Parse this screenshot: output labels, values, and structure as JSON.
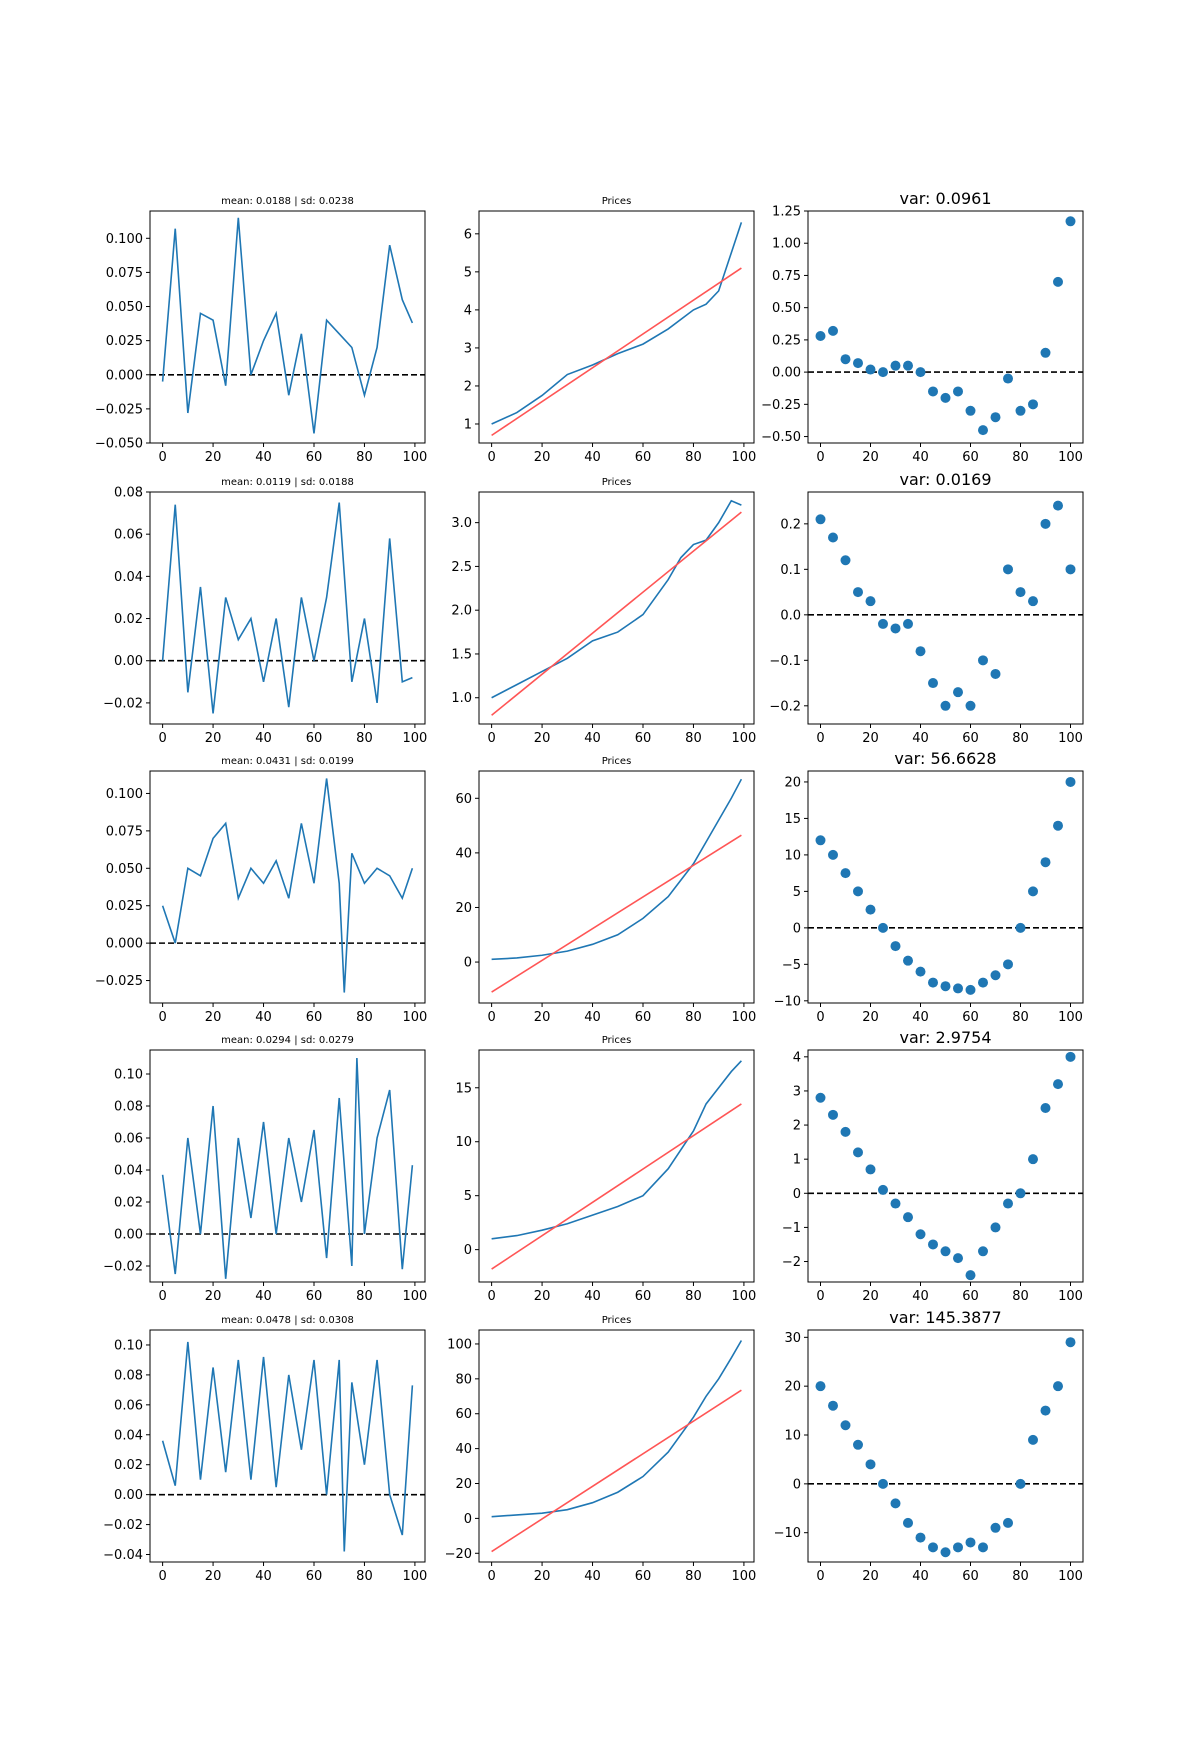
{
  "colors": {
    "line": "#1f77b4",
    "fit": "#ff5555",
    "zero": "#000000"
  },
  "chart_data": [
    {
      "type": "line",
      "title": "mean: 0.0188 | sd: 0.0238",
      "xlim": [
        -5,
        104
      ],
      "ylim": [
        -0.05,
        0.12
      ],
      "xticks": [
        0,
        20,
        40,
        60,
        80,
        100
      ],
      "yticks": [
        -0.05,
        -0.025,
        0,
        0.025,
        0.05,
        0.075,
        0.1
      ],
      "ytick_labels": [
        "−0.050",
        "−0.025",
        "0.000",
        "0.025",
        "0.050",
        "0.075",
        "0.100"
      ],
      "zero_line": true,
      "series": [
        {
          "x": [
            0,
            5,
            10,
            15,
            20,
            25,
            30,
            35,
            40,
            45,
            50,
            55,
            60,
            65,
            70,
            75,
            80,
            85,
            90,
            95,
            99
          ],
          "values": [
            -0.005,
            0.107,
            -0.028,
            0.045,
            0.04,
            -0.008,
            0.115,
            0.0,
            0.025,
            0.045,
            -0.015,
            0.03,
            -0.043,
            0.04,
            0.03,
            0.02,
            -0.015,
            0.02,
            0.095,
            0.055,
            0.038
          ]
        }
      ]
    },
    {
      "type": "line",
      "title": "Prices",
      "xlim": [
        -5,
        104
      ],
      "ylim": [
        0.5,
        6.6
      ],
      "xticks": [
        0,
        20,
        40,
        60,
        80,
        100
      ],
      "yticks": [
        1,
        2,
        3,
        4,
        5,
        6
      ],
      "ytick_labels": [
        "1",
        "2",
        "3",
        "4",
        "5",
        "6"
      ],
      "series": [
        {
          "x": [
            0,
            10,
            20,
            30,
            40,
            50,
            60,
            70,
            80,
            85,
            90,
            95,
            99
          ],
          "values": [
            1.0,
            1.3,
            1.75,
            2.3,
            2.55,
            2.85,
            3.1,
            3.5,
            4.0,
            4.15,
            4.5,
            5.5,
            6.3
          ]
        },
        {
          "x": [
            0,
            99
          ],
          "values": [
            0.7,
            5.1
          ],
          "color": "fit"
        }
      ]
    },
    {
      "type": "scatter",
      "title": "var: 0.0961",
      "xlim": [
        -5,
        105
      ],
      "ylim": [
        -0.55,
        1.25
      ],
      "xticks": [
        0,
        20,
        40,
        60,
        80,
        100
      ],
      "yticks": [
        -0.5,
        -0.25,
        0,
        0.25,
        0.5,
        0.75,
        1.0,
        1.25
      ],
      "ytick_labels": [
        "−0.50",
        "−0.25",
        "0.00",
        "0.25",
        "0.50",
        "0.75",
        "1.00",
        "1.25"
      ],
      "zero_line": true,
      "series": [
        {
          "x": [
            0,
            5,
            10,
            15,
            20,
            25,
            30,
            35,
            40,
            45,
            50,
            55,
            60,
            65,
            70,
            75,
            80,
            85,
            90,
            95,
            100
          ],
          "values": [
            0.28,
            0.32,
            0.1,
            0.07,
            0.02,
            0.0,
            0.05,
            0.05,
            0.0,
            -0.15,
            -0.2,
            -0.15,
            -0.3,
            -0.45,
            -0.35,
            -0.05,
            -0.3,
            -0.25,
            0.15,
            0.7,
            1.17
          ]
        }
      ]
    },
    {
      "type": "line",
      "title": "mean: 0.0119 | sd: 0.0188",
      "xlim": [
        -5,
        104
      ],
      "ylim": [
        -0.03,
        0.08
      ],
      "xticks": [
        0,
        20,
        40,
        60,
        80,
        100
      ],
      "yticks": [
        -0.02,
        0,
        0.02,
        0.04,
        0.06,
        0.08
      ],
      "ytick_labels": [
        "−0.02",
        "0.00",
        "0.02",
        "0.04",
        "0.06",
        "0.08"
      ],
      "zero_line": true,
      "series": [
        {
          "x": [
            0,
            5,
            10,
            15,
            20,
            25,
            30,
            35,
            40,
            45,
            50,
            55,
            60,
            65,
            70,
            75,
            80,
            85,
            90,
            95,
            99
          ],
          "values": [
            0.0,
            0.074,
            -0.015,
            0.035,
            -0.025,
            0.03,
            0.01,
            0.02,
            -0.01,
            0.02,
            -0.022,
            0.03,
            0.0,
            0.03,
            0.075,
            -0.01,
            0.02,
            -0.02,
            0.058,
            -0.01,
            -0.008
          ]
        }
      ]
    },
    {
      "type": "line",
      "title": "Prices",
      "xlim": [
        -5,
        104
      ],
      "ylim": [
        0.7,
        3.35
      ],
      "xticks": [
        0,
        20,
        40,
        60,
        80,
        100
      ],
      "yticks": [
        1.0,
        1.5,
        2.0,
        2.5,
        3.0
      ],
      "ytick_labels": [
        "1.0",
        "1.5",
        "2.0",
        "2.5",
        "3.0"
      ],
      "series": [
        {
          "x": [
            0,
            10,
            20,
            30,
            40,
            50,
            60,
            70,
            75,
            80,
            85,
            90,
            95,
            99
          ],
          "values": [
            1.0,
            1.15,
            1.3,
            1.45,
            1.65,
            1.75,
            1.95,
            2.35,
            2.6,
            2.75,
            2.8,
            3.0,
            3.25,
            3.2
          ]
        },
        {
          "x": [
            0,
            99
          ],
          "values": [
            0.8,
            3.12
          ],
          "color": "fit"
        }
      ]
    },
    {
      "type": "scatter",
      "title": "var: 0.0169",
      "xlim": [
        -5,
        105
      ],
      "ylim": [
        -0.24,
        0.27
      ],
      "xticks": [
        0,
        20,
        40,
        60,
        80,
        100
      ],
      "yticks": [
        -0.2,
        -0.1,
        0.0,
        0.1,
        0.2
      ],
      "ytick_labels": [
        "−0.2",
        "−0.1",
        "0.0",
        "0.1",
        "0.2"
      ],
      "zero_line": true,
      "series": [
        {
          "x": [
            0,
            5,
            10,
            15,
            20,
            25,
            30,
            35,
            40,
            45,
            50,
            55,
            60,
            65,
            70,
            75,
            80,
            85,
            90,
            95,
            100
          ],
          "values": [
            0.21,
            0.17,
            0.12,
            0.05,
            0.03,
            -0.02,
            -0.03,
            -0.02,
            -0.08,
            -0.15,
            -0.2,
            -0.17,
            -0.2,
            -0.1,
            -0.13,
            0.1,
            0.05,
            0.03,
            0.2,
            0.24,
            0.1
          ]
        }
      ]
    },
    {
      "type": "line",
      "title": "mean: 0.0431 | sd: 0.0199",
      "xlim": [
        -5,
        104
      ],
      "ylim": [
        -0.04,
        0.115
      ],
      "xticks": [
        0,
        20,
        40,
        60,
        80,
        100
      ],
      "yticks": [
        -0.025,
        0,
        0.025,
        0.05,
        0.075,
        0.1
      ],
      "ytick_labels": [
        "−0.025",
        "0.000",
        "0.025",
        "0.050",
        "0.075",
        "0.100"
      ],
      "zero_line": true,
      "series": [
        {
          "x": [
            0,
            5,
            10,
            15,
            20,
            25,
            30,
            35,
            40,
            45,
            50,
            55,
            60,
            65,
            70,
            72,
            75,
            80,
            85,
            90,
            95,
            99
          ],
          "values": [
            0.025,
            0.0,
            0.05,
            0.045,
            0.07,
            0.08,
            0.03,
            0.05,
            0.04,
            0.055,
            0.03,
            0.08,
            0.04,
            0.11,
            0.04,
            -0.033,
            0.06,
            0.04,
            0.05,
            0.045,
            0.03,
            0.05
          ]
        }
      ]
    },
    {
      "type": "line",
      "title": "Prices",
      "xlim": [
        -5,
        104
      ],
      "ylim": [
        -15,
        70
      ],
      "xticks": [
        0,
        20,
        40,
        60,
        80,
        100
      ],
      "yticks": [
        0,
        20,
        40,
        60
      ],
      "ytick_labels": [
        "0",
        "20",
        "40",
        "60"
      ],
      "series": [
        {
          "x": [
            0,
            10,
            20,
            30,
            40,
            50,
            60,
            70,
            80,
            85,
            90,
            95,
            99
          ],
          "values": [
            1,
            1.5,
            2.5,
            4,
            6.5,
            10,
            16,
            24,
            36,
            44,
            52,
            60,
            67
          ]
        },
        {
          "x": [
            0,
            99
          ],
          "values": [
            -11,
            46.5
          ],
          "color": "fit"
        }
      ]
    },
    {
      "type": "scatter",
      "title": "var: 56.6628",
      "xlim": [
        -5,
        105
      ],
      "ylim": [
        -10.3,
        21.5
      ],
      "xticks": [
        0,
        20,
        40,
        60,
        80,
        100
      ],
      "yticks": [
        -10,
        -5,
        0,
        5,
        10,
        15,
        20
      ],
      "ytick_labels": [
        "−10",
        "−5",
        "0",
        "5",
        "10",
        "15",
        "20"
      ],
      "zero_line": true,
      "series": [
        {
          "x": [
            0,
            5,
            10,
            15,
            20,
            25,
            30,
            35,
            40,
            45,
            50,
            55,
            60,
            65,
            70,
            75,
            80,
            85,
            90,
            95,
            100
          ],
          "values": [
            12,
            10,
            7.5,
            5,
            2.5,
            0,
            -2.5,
            -4.5,
            -6,
            -7.5,
            -8,
            -8.3,
            -8.5,
            -7.5,
            -6.5,
            -5,
            0,
            5,
            9,
            14,
            20
          ]
        }
      ]
    },
    {
      "type": "line",
      "title": "mean: 0.0294 | sd: 0.0279",
      "xlim": [
        -5,
        104
      ],
      "ylim": [
        -0.03,
        0.115
      ],
      "xticks": [
        0,
        20,
        40,
        60,
        80,
        100
      ],
      "yticks": [
        -0.02,
        0,
        0.02,
        0.04,
        0.06,
        0.08,
        0.1
      ],
      "ytick_labels": [
        "−0.02",
        "0.00",
        "0.02",
        "0.04",
        "0.06",
        "0.08",
        "0.10"
      ],
      "zero_line": true,
      "series": [
        {
          "x": [
            0,
            5,
            10,
            15,
            20,
            25,
            30,
            35,
            40,
            45,
            50,
            55,
            60,
            65,
            70,
            75,
            77,
            80,
            85,
            90,
            95,
            99
          ],
          "values": [
            0.037,
            -0.025,
            0.06,
            0.0,
            0.08,
            -0.028,
            0.06,
            0.01,
            0.07,
            0.0,
            0.06,
            0.02,
            0.065,
            -0.015,
            0.085,
            -0.02,
            0.11,
            0.0,
            0.06,
            0.09,
            -0.022,
            0.043
          ]
        }
      ]
    },
    {
      "type": "line",
      "title": "Prices",
      "xlim": [
        -5,
        104
      ],
      "ylim": [
        -3,
        18.5
      ],
      "xticks": [
        0,
        20,
        40,
        60,
        80,
        100
      ],
      "yticks": [
        0,
        5,
        10,
        15
      ],
      "ytick_labels": [
        "0",
        "5",
        "10",
        "15"
      ],
      "series": [
        {
          "x": [
            0,
            10,
            20,
            30,
            40,
            50,
            60,
            70,
            80,
            85,
            90,
            95,
            99
          ],
          "values": [
            1.0,
            1.3,
            1.8,
            2.4,
            3.2,
            4.0,
            5.0,
            7.5,
            11,
            13.5,
            15,
            16.5,
            17.5
          ]
        },
        {
          "x": [
            0,
            99
          ],
          "values": [
            -1.8,
            13.5
          ],
          "color": "fit"
        }
      ]
    },
    {
      "type": "scatter",
      "title": "var: 2.9754",
      "xlim": [
        -5,
        105
      ],
      "ylim": [
        -2.6,
        4.2
      ],
      "xticks": [
        0,
        20,
        40,
        60,
        80,
        100
      ],
      "yticks": [
        -2,
        -1,
        0,
        1,
        2,
        3,
        4
      ],
      "ytick_labels": [
        "−2",
        "−1",
        "0",
        "1",
        "2",
        "3",
        "4"
      ],
      "zero_line": true,
      "series": [
        {
          "x": [
            0,
            5,
            10,
            15,
            20,
            25,
            30,
            35,
            40,
            45,
            50,
            55,
            60,
            65,
            70,
            75,
            80,
            85,
            90,
            95,
            100
          ],
          "values": [
            2.8,
            2.3,
            1.8,
            1.2,
            0.7,
            0.1,
            -0.3,
            -0.7,
            -1.2,
            -1.5,
            -1.7,
            -1.9,
            -2.4,
            -1.7,
            -1.0,
            -0.3,
            0.0,
            1.0,
            2.5,
            3.2,
            4.0
          ]
        }
      ]
    },
    {
      "type": "line",
      "title": "mean: 0.0478 | sd: 0.0308",
      "xlim": [
        -5,
        104
      ],
      "ylim": [
        -0.045,
        0.11
      ],
      "xticks": [
        0,
        20,
        40,
        60,
        80,
        100
      ],
      "yticks": [
        -0.04,
        -0.02,
        0,
        0.02,
        0.04,
        0.06,
        0.08,
        0.1
      ],
      "ytick_labels": [
        "−0.04",
        "−0.02",
        "0.00",
        "0.02",
        "0.04",
        "0.06",
        "0.08",
        "0.10"
      ],
      "zero_line": true,
      "series": [
        {
          "x": [
            0,
            5,
            10,
            15,
            20,
            25,
            30,
            35,
            40,
            45,
            50,
            55,
            60,
            65,
            70,
            72,
            75,
            80,
            85,
            90,
            95,
            99
          ],
          "values": [
            0.036,
            0.006,
            0.102,
            0.01,
            0.085,
            0.015,
            0.09,
            0.01,
            0.092,
            0.005,
            0.08,
            0.03,
            0.09,
            0.0,
            0.09,
            -0.038,
            0.075,
            0.02,
            0.09,
            0.0,
            -0.027,
            0.073
          ]
        }
      ]
    },
    {
      "type": "line",
      "title": "Prices",
      "xlim": [
        -5,
        104
      ],
      "ylim": [
        -25,
        108
      ],
      "xticks": [
        0,
        20,
        40,
        60,
        80,
        100
      ],
      "yticks": [
        -20,
        0,
        20,
        40,
        60,
        80,
        100
      ],
      "ytick_labels": [
        "−20",
        "0",
        "20",
        "40",
        "60",
        "80",
        "100"
      ],
      "series": [
        {
          "x": [
            0,
            10,
            20,
            30,
            40,
            50,
            60,
            70,
            80,
            85,
            90,
            95,
            99
          ],
          "values": [
            1,
            2,
            3,
            5,
            9,
            15,
            24,
            38,
            58,
            70,
            80,
            92,
            102
          ]
        },
        {
          "x": [
            0,
            99
          ],
          "values": [
            -19,
            73.5
          ],
          "color": "fit"
        }
      ]
    },
    {
      "type": "scatter",
      "title": "var: 145.3877",
      "xlim": [
        -5,
        105
      ],
      "ylim": [
        -16,
        31.5
      ],
      "xticks": [
        0,
        20,
        40,
        60,
        80,
        100
      ],
      "yticks": [
        -10,
        0,
        10,
        20,
        30
      ],
      "ytick_labels": [
        "−10",
        "0",
        "10",
        "20",
        "30"
      ],
      "zero_line": true,
      "series": [
        {
          "x": [
            0,
            5,
            10,
            15,
            20,
            25,
            30,
            35,
            40,
            45,
            50,
            55,
            60,
            65,
            70,
            75,
            80,
            85,
            90,
            95,
            100
          ],
          "values": [
            20,
            16,
            12,
            8,
            4,
            0,
            -4,
            -8,
            -11,
            -13,
            -14,
            -13,
            -12,
            -13,
            -9,
            -8,
            0,
            9,
            15,
            20,
            29
          ]
        }
      ]
    }
  ]
}
